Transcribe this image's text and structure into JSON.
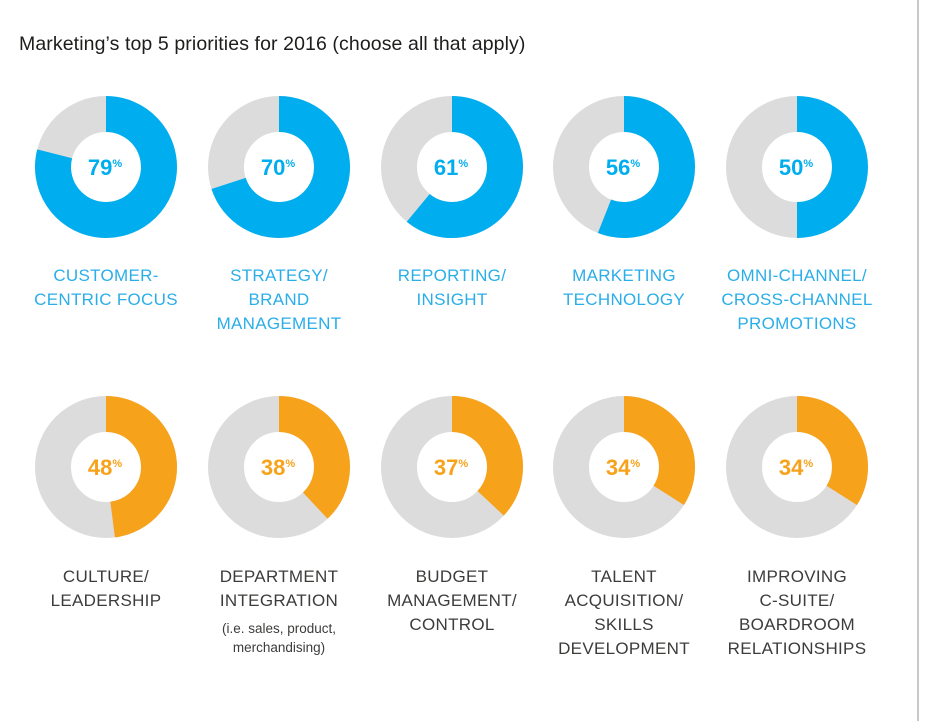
{
  "title": "Marketing’s top 5 priorities for 2016 (choose all that apply)",
  "colors": {
    "track": "#dcdcdc",
    "blue": "#00aeef",
    "orange": "#f7a21b",
    "blue_text": "#2aaee9",
    "dark_text": "#3c3c3b"
  },
  "chart_data": {
    "type": "pie",
    "variant": "donut",
    "unit": "%",
    "items": [
      {
        "value": 79,
        "label_lines": [
          "CUSTOMER-",
          "CENTRIC FOCUS"
        ],
        "color": "blue"
      },
      {
        "value": 70,
        "label_lines": [
          "STRATEGY/",
          "BRAND",
          "MANAGEMENT"
        ],
        "color": "blue"
      },
      {
        "value": 61,
        "label_lines": [
          "REPORTING/",
          "INSIGHT"
        ],
        "color": "blue"
      },
      {
        "value": 56,
        "label_lines": [
          "MARKETING",
          "TECHNOLOGY"
        ],
        "color": "blue"
      },
      {
        "value": 50,
        "label_lines": [
          "OMNI-CHANNEL/",
          "CROSS-CHANNEL",
          "PROMOTIONS"
        ],
        "color": "blue"
      },
      {
        "value": 48,
        "label_lines": [
          "CULTURE/",
          "LEADERSHIP"
        ],
        "color": "orange"
      },
      {
        "value": 38,
        "label_lines": [
          "DEPARTMENT",
          "INTEGRATION"
        ],
        "sub_lines": [
          "(i.e. sales, product,",
          "merchandising)"
        ],
        "color": "orange"
      },
      {
        "value": 37,
        "label_lines": [
          "BUDGET",
          "MANAGEMENT/",
          "CONTROL"
        ],
        "color": "orange"
      },
      {
        "value": 34,
        "label_lines": [
          "TALENT",
          "ACQUISITION/",
          "SKILLS",
          "DEVELOPMENT"
        ],
        "color": "orange"
      },
      {
        "value": 34,
        "label_lines": [
          "IMPROVING",
          "C-SUITE/",
          "BOARDROOM",
          "RELATIONSHIPS"
        ],
        "color": "orange"
      }
    ]
  }
}
